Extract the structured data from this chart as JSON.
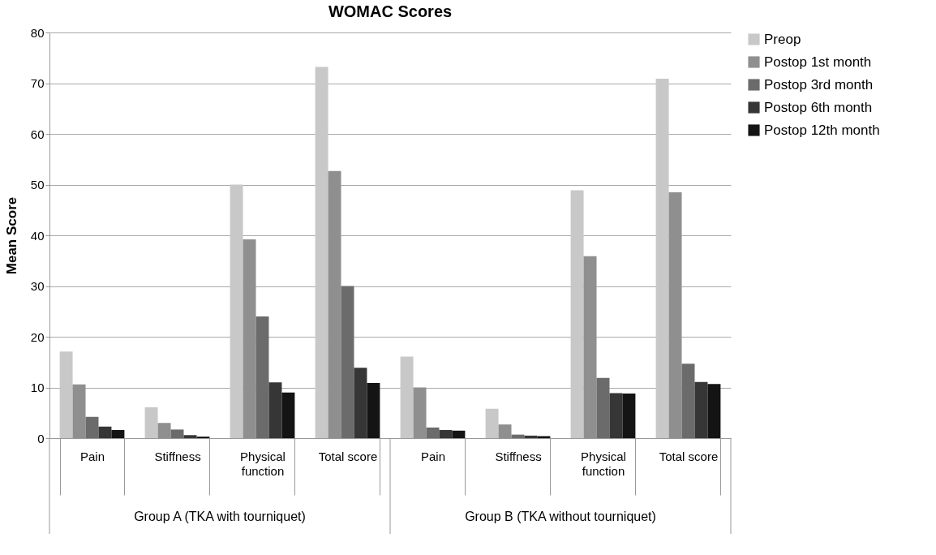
{
  "chart_data": {
    "type": "bar",
    "title": "WOMAC Scores",
    "ylabel": "Mean Score",
    "categories": [
      "Pain",
      "Stiffness",
      "Physical function",
      "Total score",
      "Pain",
      "Stiffness",
      "Physical function",
      "Total score"
    ],
    "series": [
      {
        "name": "Preop",
        "color": "#c8c8c8",
        "values": [
          17.1,
          6.1,
          50,
          73.2,
          16.1,
          5.8,
          48.9,
          70.9
        ]
      },
      {
        "name": "Postop 1st month",
        "color": "#8f8f8f",
        "values": [
          10.6,
          3.0,
          39.2,
          52.7,
          10,
          2.7,
          35.9,
          48.5
        ]
      },
      {
        "name": "Postop 3rd month",
        "color": "#6b6b6b",
        "values": [
          4.2,
          1.7,
          24,
          30,
          2.1,
          0.7,
          11.9,
          14.7
        ]
      },
      {
        "name": "Postop 6th month",
        "color": "#363636",
        "values": [
          2.3,
          0.6,
          11,
          13.9,
          1.6,
          0.5,
          8.9,
          11.1
        ]
      },
      {
        "name": "Postop 12th month",
        "color": "#141414",
        "values": [
          1.6,
          0.3,
          9,
          10.9,
          1.5,
          0.4,
          8.8,
          10.7
        ]
      }
    ],
    "ylim": [
      0,
      80
    ],
    "yticks": [
      0,
      10,
      20,
      30,
      40,
      50,
      60,
      70,
      80
    ],
    "grid": "y",
    "legend": "right",
    "annotations": [
      "Group A (TKA with tourniquet)",
      "Group B (TKA without tourniquet)"
    ]
  }
}
